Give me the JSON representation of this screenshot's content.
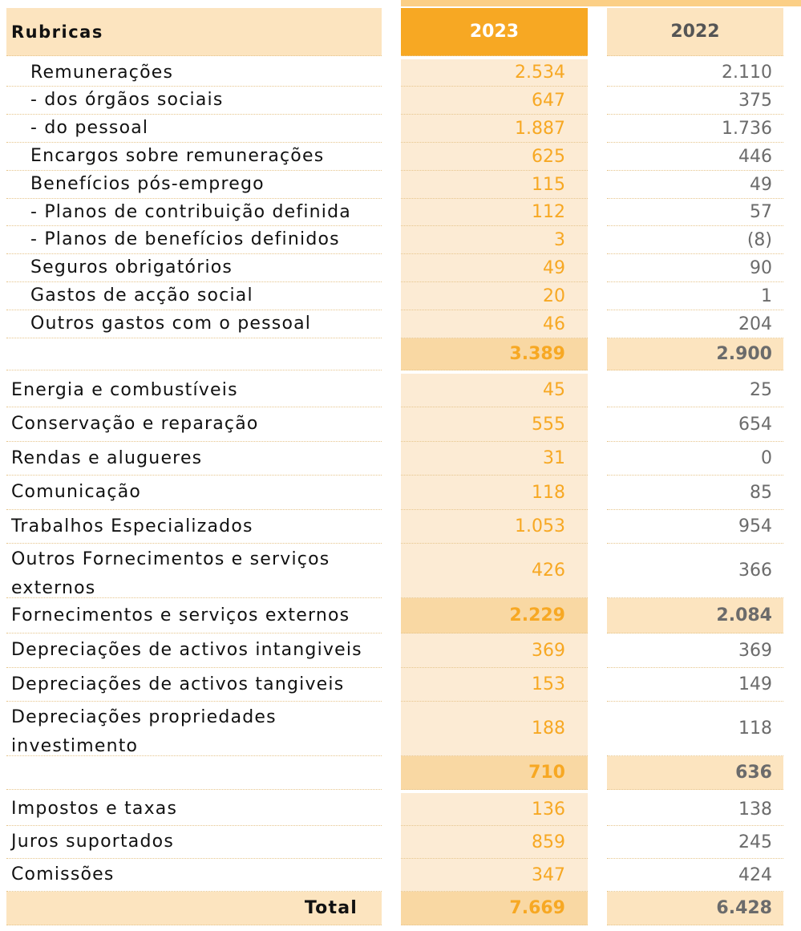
{
  "header": {
    "label": "Rubricas",
    "year_a": "2023",
    "year_b": "2022"
  },
  "rows": [
    {
      "label": "Remunerações",
      "a": "2.534",
      "b": "2.110"
    },
    {
      "label": "- dos órgãos sociais",
      "a": "647",
      "b": "375"
    },
    {
      "label": "- do pessoal",
      "a": "1.887",
      "b": "1.736"
    },
    {
      "label": "Encargos sobre remunerações",
      "a": "625",
      "b": "446"
    },
    {
      "label": "Benefícios pós-emprego",
      "a": "115",
      "b": "49"
    },
    {
      "label": "- Planos de contribuição definida",
      "a": "112",
      "b": "57"
    },
    {
      "label": "- Planos de benefícios definidos",
      "a": "3",
      "b": "(8)"
    },
    {
      "label": "Seguros obrigatórios",
      "a": "49",
      "b": "90"
    },
    {
      "label": "Gastos de acção social",
      "a": "20",
      "b": "1"
    },
    {
      "label": "Outros gastos com o pessoal",
      "a": "46",
      "b": "204"
    },
    {
      "label": "",
      "a": "3.389",
      "b": "2.900"
    },
    {
      "label": "Energia e combustíveis",
      "a": "45",
      "b": "25"
    },
    {
      "label": "Conservação e reparação",
      "a": "555",
      "b": "654"
    },
    {
      "label": "Rendas e alugueres",
      "a": "31",
      "b": "0"
    },
    {
      "label": "Comunicação",
      "a": "118",
      "b": "85"
    },
    {
      "label": "Trabalhos Especializados",
      "a": "1.053",
      "b": "954"
    },
    {
      "label": "Outros Fornecimentos e serviços externos",
      "a": "426",
      "b": "366"
    },
    {
      "label": "Fornecimentos e serviços externos",
      "a": "2.229",
      "b": "2.084"
    },
    {
      "label": "Depreciações de activos intangiveis",
      "a": "369",
      "b": "369"
    },
    {
      "label": "Depreciações de activos tangiveis",
      "a": "153",
      "b": "149"
    },
    {
      "label": "Depreciações propriedades investimento",
      "a": "188",
      "b": "118"
    },
    {
      "label": "",
      "a": "710",
      "b": "636"
    },
    {
      "label": "Impostos e taxas",
      "a": "136",
      "b": "138"
    },
    {
      "label": "Juros suportados",
      "a": "859",
      "b": "245"
    },
    {
      "label": "Comissões",
      "a": "347",
      "b": "424"
    }
  ],
  "total": {
    "label": "Total",
    "a": "7.669",
    "b": "6.428"
  }
}
